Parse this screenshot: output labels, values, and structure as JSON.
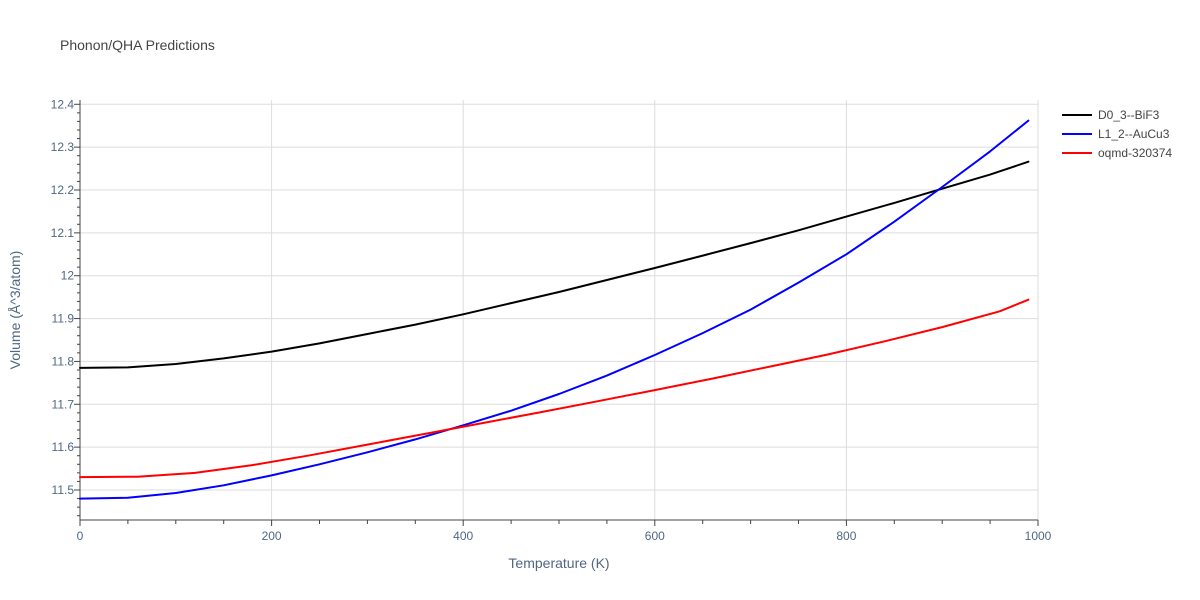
{
  "chart_data": {
    "type": "line",
    "title": "Phonon/QHA Predictions",
    "xlabel": "Temperature (K)",
    "ylabel": "Volume (Å^3/atom)",
    "xlim": [
      0,
      1000
    ],
    "ylim": [
      11.43,
      12.41
    ],
    "xticks": [
      0,
      200,
      400,
      600,
      800,
      1000
    ],
    "xtick_labels": [
      "0",
      "200",
      "400",
      "600",
      "800",
      "1000"
    ],
    "yticks": [
      11.5,
      11.6,
      11.7,
      11.8,
      11.9,
      12.0,
      12.1,
      12.2,
      12.3,
      12.4
    ],
    "ytick_labels": [
      "11.5",
      "11.6",
      "11.7",
      "11.8",
      "11.9",
      "12",
      "12.1",
      "12.2",
      "12.3",
      "12.4"
    ],
    "grid": true,
    "legend_position": "top-right",
    "series": [
      {
        "name": "D0_3--BiF3",
        "color": "#000000",
        "x": [
          0,
          50,
          100,
          150,
          200,
          250,
          300,
          350,
          400,
          450,
          500,
          550,
          600,
          650,
          700,
          750,
          800,
          850,
          900,
          950,
          990
        ],
        "y": [
          11.785,
          11.786,
          11.794,
          11.807,
          11.823,
          11.842,
          11.864,
          11.886,
          11.91,
          11.936,
          11.962,
          11.99,
          12.018,
          12.047,
          12.076,
          12.106,
          12.138,
          12.17,
          12.203,
          12.236,
          12.266
        ]
      },
      {
        "name": "L1_2--AuCu3",
        "color": "#0000ff",
        "x": [
          0,
          50,
          100,
          150,
          200,
          250,
          300,
          350,
          400,
          450,
          500,
          550,
          600,
          650,
          700,
          750,
          800,
          850,
          900,
          950,
          990
        ],
        "y": [
          11.48,
          11.482,
          11.493,
          11.511,
          11.534,
          11.56,
          11.588,
          11.618,
          11.651,
          11.685,
          11.724,
          11.767,
          11.815,
          11.866,
          11.921,
          11.984,
          12.05,
          12.126,
          12.207,
          12.29,
          12.362
        ]
      },
      {
        "name": "oqmd-320374",
        "color": "#ff0000",
        "x": [
          0,
          60,
          120,
          180,
          240,
          300,
          360,
          420,
          480,
          540,
          600,
          660,
          720,
          780,
          840,
          900,
          960,
          990
        ],
        "y": [
          11.53,
          11.531,
          11.54,
          11.558,
          11.581,
          11.606,
          11.631,
          11.656,
          11.681,
          11.707,
          11.733,
          11.76,
          11.788,
          11.816,
          11.847,
          11.88,
          11.917,
          11.944
        ]
      }
    ]
  }
}
